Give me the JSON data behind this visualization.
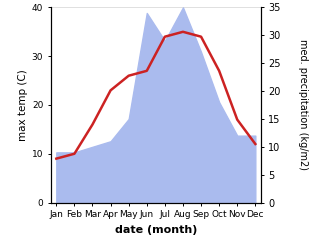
{
  "months": [
    "Jan",
    "Feb",
    "Mar",
    "Apr",
    "May",
    "Jun",
    "Jul",
    "Aug",
    "Sep",
    "Oct",
    "Nov",
    "Dec"
  ],
  "temp": [
    9,
    10,
    16,
    23,
    26,
    27,
    34,
    35,
    34,
    27,
    17,
    12
  ],
  "precip": [
    9,
    9,
    10,
    11,
    15,
    34,
    29,
    35,
    27,
    18,
    12,
    12
  ],
  "temp_color": "#cc2222",
  "precip_color": "#aabbee",
  "temp_ylim": [
    0,
    40
  ],
  "precip_ylim": [
    0,
    35
  ],
  "xlabel": "date (month)",
  "ylabel_left": "max temp (C)",
  "ylabel_right": "med. precipitation (kg/m2)",
  "temp_yticks": [
    0,
    10,
    20,
    30,
    40
  ],
  "precip_yticks": [
    0,
    5,
    10,
    15,
    20,
    25,
    30,
    35
  ],
  "bg_color": "#ffffff"
}
